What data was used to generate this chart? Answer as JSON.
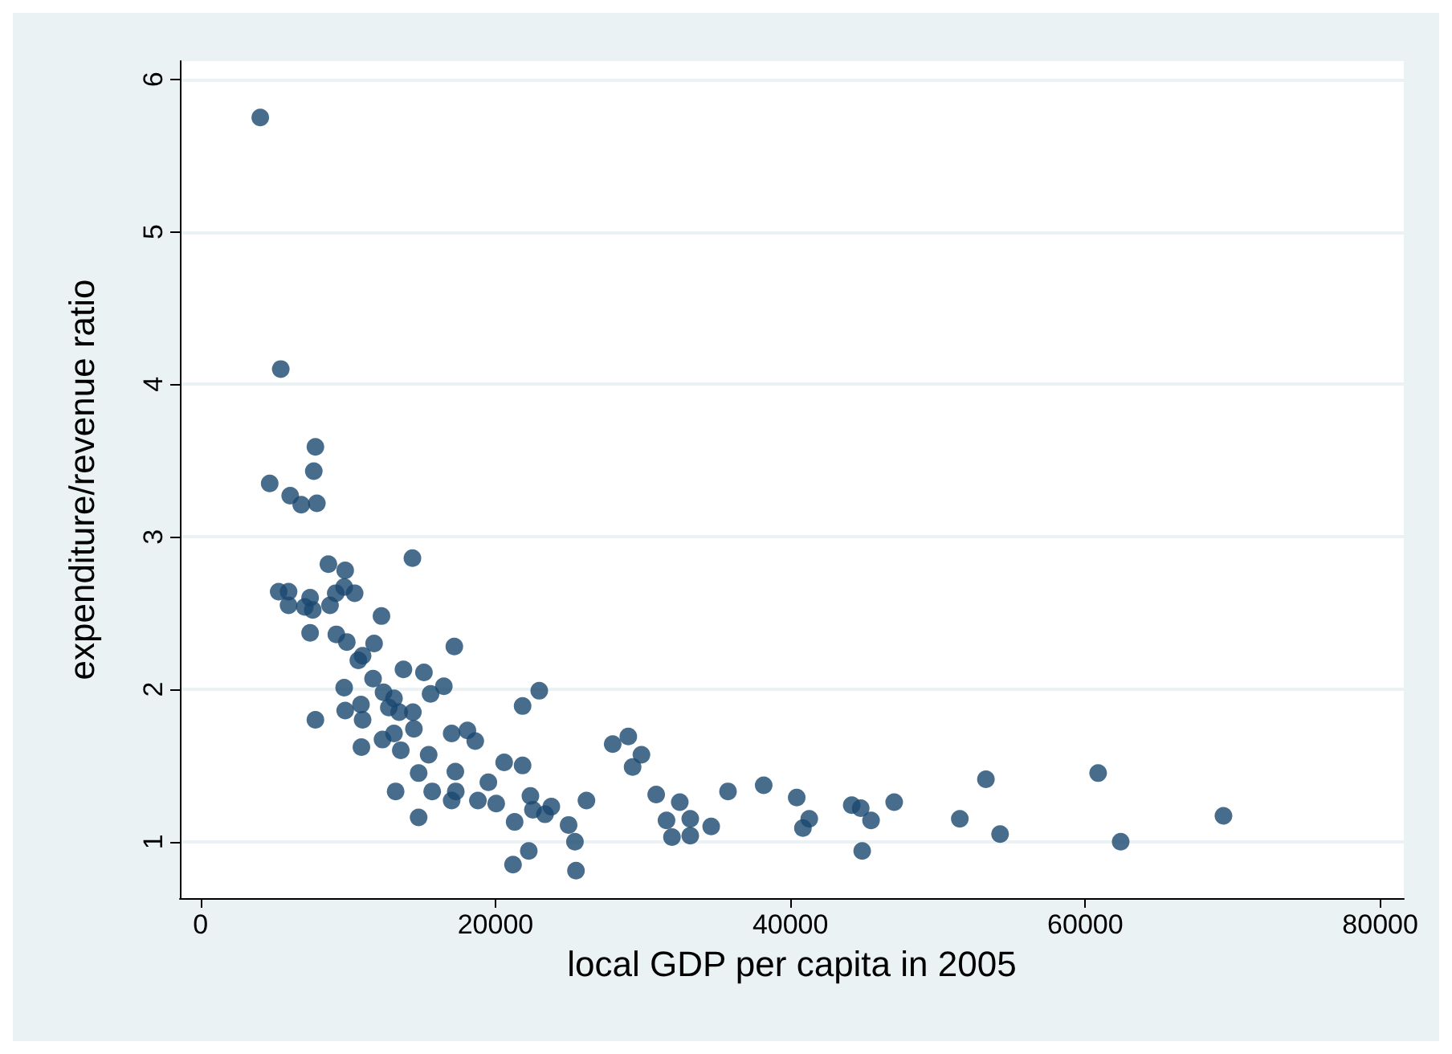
{
  "chart_data": {
    "type": "scatter",
    "xlabel": "local GDP per capita in 2005",
    "ylabel": "expenditure/revenue ratio",
    "marker": "circle",
    "grid": "y",
    "xlim": [
      -1400,
      81600
    ],
    "ylim": [
      0.63,
      6.12
    ],
    "xticks": [
      0,
      20000,
      40000,
      60000,
      80000
    ],
    "yticks": [
      1,
      2,
      3,
      4,
      5,
      6
    ],
    "series": [
      {
        "color": "#1a476f",
        "x": [
          4050,
          5440,
          4690,
          7790,
          7680,
          6080,
          6830,
          7890,
          14370,
          8670,
          9810,
          5300,
          5970,
          5970,
          7430,
          7070,
          7610,
          8780,
          9170,
          9740,
          10450,
          7430,
          9210,
          9920,
          12270,
          11770,
          10990,
          10700,
          17210,
          13760,
          15150,
          11700,
          9740,
          16500,
          15600,
          12410,
          13120,
          12770,
          13470,
          14400,
          14470,
          9810,
          10880,
          10990,
          7790,
          21840,
          22970,
          17030,
          18100,
          18630,
          12340,
          13120,
          10910,
          13580,
          15470,
          20590,
          21840,
          14790,
          17280,
          19520,
          15710,
          13230,
          17310,
          17030,
          18810,
          20050,
          22370,
          22540,
          14790,
          21300,
          22260,
          21190,
          26170,
          25390,
          24960,
          25460,
          23790,
          23360,
          27950,
          29010,
          29300,
          29900,
          30900,
          32500,
          31600,
          31970,
          33210,
          33210,
          34630,
          35770,
          38190,
          40430,
          41280,
          40850,
          44160,
          44770,
          45470,
          44870,
          47040,
          51490,
          53260,
          54220,
          60870,
          62400,
          69370
        ],
        "values": [
          5.75,
          4.1,
          3.35,
          3.59,
          3.43,
          3.27,
          3.21,
          3.22,
          2.86,
          2.82,
          2.78,
          2.64,
          2.64,
          2.55,
          2.6,
          2.54,
          2.52,
          2.55,
          2.63,
          2.67,
          2.63,
          2.37,
          2.36,
          2.31,
          2.48,
          2.3,
          2.22,
          2.19,
          2.28,
          2.13,
          2.11,
          2.07,
          2.01,
          2.02,
          1.97,
          1.98,
          1.94,
          1.88,
          1.85,
          1.85,
          1.74,
          1.86,
          1.9,
          1.8,
          1.8,
          1.89,
          1.99,
          1.71,
          1.73,
          1.66,
          1.67,
          1.71,
          1.62,
          1.6,
          1.57,
          1.52,
          1.5,
          1.45,
          1.46,
          1.39,
          1.33,
          1.33,
          1.33,
          1.27,
          1.27,
          1.25,
          1.3,
          1.21,
          1.16,
          1.13,
          0.94,
          0.85,
          1.27,
          1.0,
          1.11,
          0.81,
          1.23,
          1.18,
          1.64,
          1.69,
          1.49,
          1.57,
          1.31,
          1.26,
          1.14,
          1.03,
          1.15,
          1.04,
          1.1,
          1.33,
          1.37,
          1.29,
          1.15,
          1.09,
          1.24,
          1.22,
          1.14,
          0.94,
          1.26,
          1.15,
          1.41,
          1.05,
          1.45,
          1.0,
          1.17
        ]
      }
    ]
  }
}
